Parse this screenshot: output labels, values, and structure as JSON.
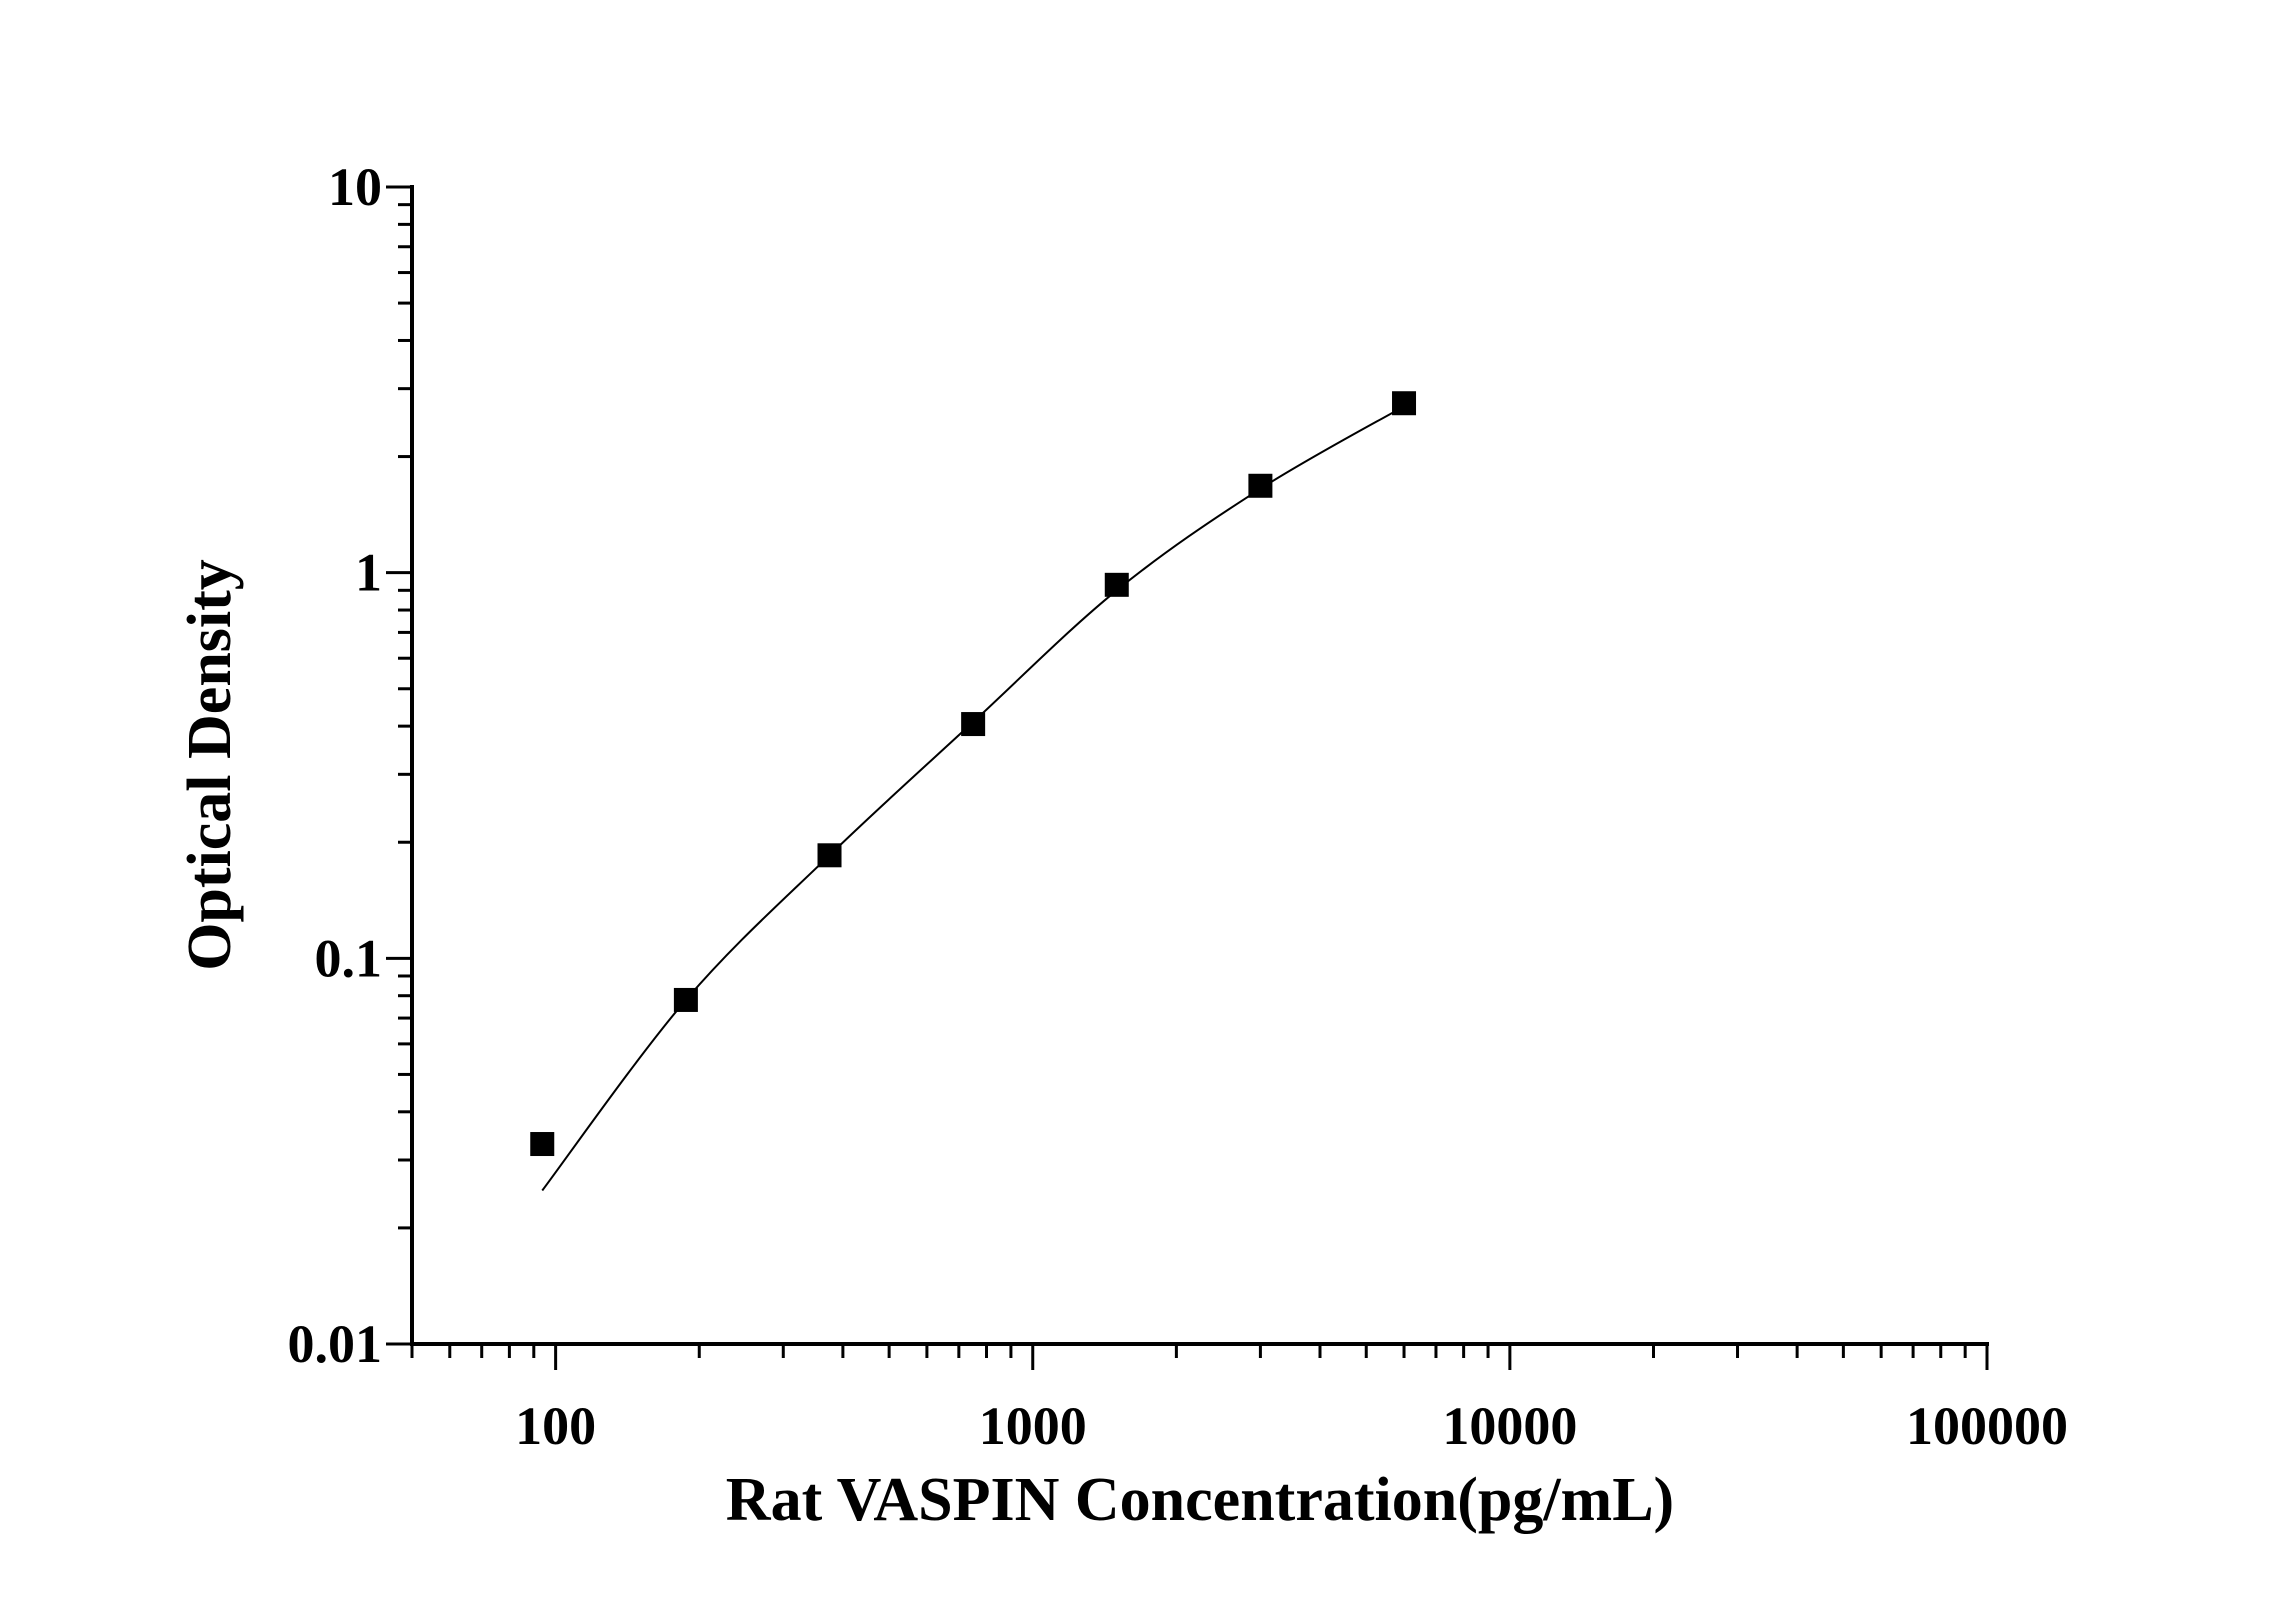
{
  "chart_data": {
    "type": "scatter",
    "title": "",
    "xlabel": "Rat VASPIN Concentration(pg/mL)",
    "ylabel": "Optical Density",
    "x_scale": "log",
    "y_scale": "log",
    "xlim": [
      50,
      100000
    ],
    "ylim": [
      0.01,
      10
    ],
    "x_tick_labels": [
      "100",
      "1000",
      "10000",
      "100000"
    ],
    "x_ticks": [
      100,
      1000,
      10000,
      100000
    ],
    "y_tick_labels": [
      "0.01",
      "0.1",
      "1",
      "10"
    ],
    "y_ticks": [
      0.01,
      0.1,
      1,
      10
    ],
    "grid": false,
    "marker": "square",
    "color": "#000000",
    "points": {
      "x": [
        93.75,
        187.5,
        375,
        750,
        1500,
        3000,
        6000
      ],
      "y": [
        0.033,
        0.078,
        0.185,
        0.405,
        0.93,
        1.68,
        2.75
      ]
    },
    "fit_curve": {
      "x": [
        93.75,
        187.5,
        375,
        750,
        1500,
        3000,
        6000
      ],
      "y": [
        0.025,
        0.078,
        0.185,
        0.41,
        0.9,
        1.65,
        2.7
      ]
    }
  }
}
